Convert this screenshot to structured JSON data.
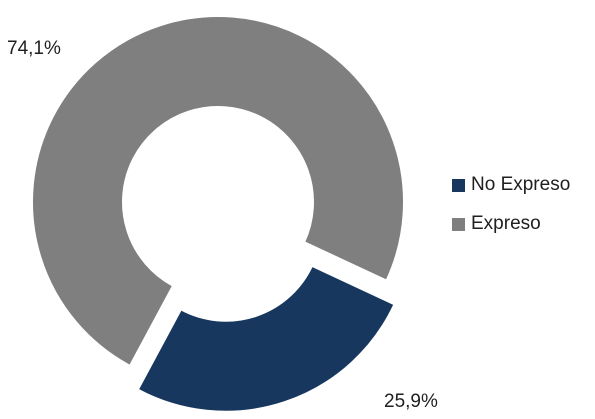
{
  "chart_data": {
    "type": "pie",
    "variant": "donut",
    "title": "",
    "slices": [
      {
        "name": "No Expreso",
        "value": 25.9,
        "label": "25,9%",
        "color": "#17375e",
        "exploded": true
      },
      {
        "name": "Expreso",
        "value": 74.1,
        "label": "74,1%",
        "color": "#7f7f7f",
        "exploded": false
      }
    ],
    "legend": {
      "position": "right",
      "entries": [
        "No Expreso",
        "Expreso"
      ]
    }
  }
}
